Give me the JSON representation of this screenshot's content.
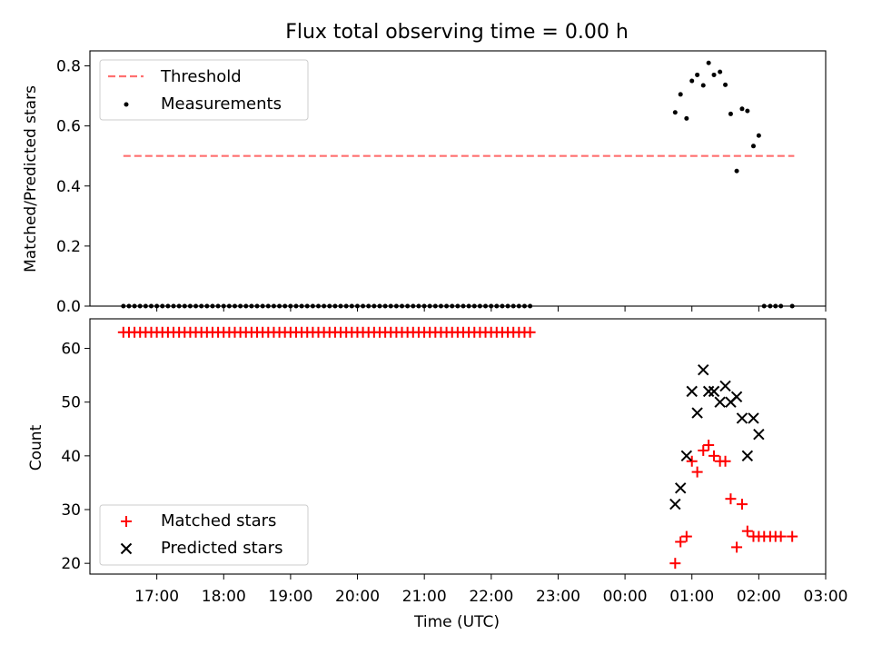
{
  "chart_data": [
    {
      "type": "scatter",
      "title": "Flux total observing time = 0.00 h",
      "xlabel": "",
      "ylabel": "Matched/Predicted stars",
      "xlim": [
        16.0,
        27.0
      ],
      "ylim": [
        0,
        0.85
      ],
      "yticks": [
        0.0,
        0.2,
        0.4,
        0.6,
        0.8
      ],
      "ytick_labels": [
        "0.0",
        "0.2",
        "0.4",
        "0.6",
        "0.8"
      ],
      "legend_position": "upper-left",
      "threshold": {
        "name": "Threshold",
        "value": 0.5,
        "x": [
          16.5,
          26.53
        ],
        "color": "#ff7070"
      },
      "measurements": {
        "name": "Measurements",
        "color": "#000000",
        "x_zero_start": 16.5,
        "x_zero_step": 0.0833,
        "x_zero_count": 74,
        "points": [
          [
            24.75,
            0.645
          ],
          [
            24.83,
            0.705
          ],
          [
            24.92,
            0.625
          ],
          [
            25.0,
            0.75
          ],
          [
            25.08,
            0.77
          ],
          [
            25.17,
            0.735
          ],
          [
            25.25,
            0.81
          ],
          [
            25.33,
            0.77
          ],
          [
            25.42,
            0.78
          ],
          [
            25.5,
            0.737
          ],
          [
            25.58,
            0.64
          ],
          [
            25.75,
            0.657
          ],
          [
            25.83,
            0.65
          ],
          [
            25.67,
            0.45
          ],
          [
            25.92,
            0.533
          ],
          [
            26.0,
            0.568
          ],
          [
            26.08,
            0.0
          ],
          [
            26.17,
            0.0
          ],
          [
            26.25,
            0.0
          ],
          [
            26.33,
            0.0
          ],
          [
            26.5,
            0.0
          ]
        ]
      }
    },
    {
      "type": "scatter",
      "title": "",
      "xlabel": "Time (UTC)",
      "ylabel": "Count",
      "xlim": [
        16.0,
        27.0
      ],
      "ylim": [
        18,
        65.5
      ],
      "yticks": [
        20,
        30,
        40,
        50,
        60
      ],
      "ytick_labels": [
        "20",
        "30",
        "40",
        "50",
        "60"
      ],
      "xticks": [
        17,
        18,
        19,
        20,
        21,
        22,
        23,
        24,
        25,
        26,
        27
      ],
      "xtick_labels": [
        "17:00",
        "18:00",
        "19:00",
        "20:00",
        "21:00",
        "22:00",
        "23:00",
        "00:00",
        "01:00",
        "02:00",
        "03:00"
      ],
      "legend_position": "lower-left",
      "series": [
        {
          "name": "Matched stars",
          "marker": "plus",
          "color": "#ff0000",
          "constant_run": {
            "start": 16.5,
            "step": 0.0833,
            "count": 74,
            "value": 63
          },
          "points": [
            [
              24.75,
              20
            ],
            [
              24.83,
              24
            ],
            [
              24.92,
              25
            ],
            [
              25.0,
              39
            ],
            [
              25.08,
              37
            ],
            [
              25.17,
              41
            ],
            [
              25.25,
              42
            ],
            [
              25.33,
              40
            ],
            [
              25.42,
              39
            ],
            [
              25.5,
              39
            ],
            [
              25.58,
              32
            ],
            [
              25.67,
              23
            ],
            [
              25.75,
              31
            ],
            [
              25.83,
              26
            ],
            [
              25.92,
              25
            ],
            [
              26.0,
              25
            ],
            [
              26.08,
              25
            ],
            [
              26.17,
              25
            ],
            [
              26.25,
              25
            ],
            [
              26.33,
              25
            ],
            [
              26.5,
              25
            ]
          ]
        },
        {
          "name": "Predicted stars",
          "marker": "x",
          "color": "#000000",
          "points": [
            [
              24.75,
              31
            ],
            [
              24.83,
              34
            ],
            [
              24.92,
              40
            ],
            [
              25.0,
              52
            ],
            [
              25.08,
              48
            ],
            [
              25.17,
              56
            ],
            [
              25.25,
              52
            ],
            [
              25.33,
              52
            ],
            [
              25.42,
              50
            ],
            [
              25.5,
              53
            ],
            [
              25.58,
              50
            ],
            [
              25.67,
              51
            ],
            [
              25.75,
              47
            ],
            [
              25.83,
              40
            ],
            [
              25.92,
              47
            ],
            [
              26.0,
              44
            ]
          ]
        }
      ]
    }
  ]
}
